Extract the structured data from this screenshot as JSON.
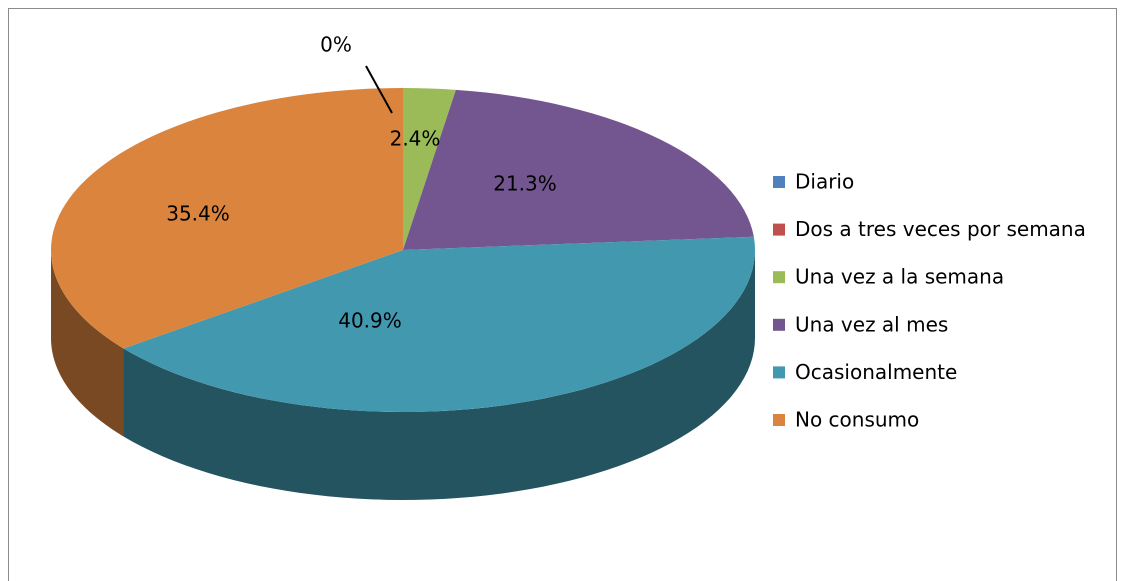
{
  "chart_data": {
    "type": "pie3d",
    "categories": [
      "Diario",
      "Dos a tres veces por semana",
      "Una vez a la semana",
      "Una vez al mes",
      "Ocasionalmente",
      "No consumo"
    ],
    "values": [
      0,
      0,
      2.4,
      21.3,
      40.9,
      35.4
    ],
    "value_labels": [
      "0%",
      null,
      "2.4%",
      "21.3%",
      "40.9%",
      "35.4%"
    ],
    "colors": [
      "#4f81bd",
      "#c0504d",
      "#9bbb59",
      "#73568f",
      "#4198af",
      "#db843d"
    ],
    "legend": "right"
  }
}
